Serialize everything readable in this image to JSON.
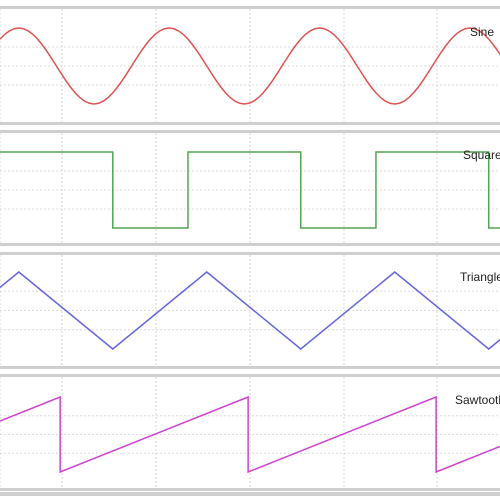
{
  "chart_data": [
    {
      "type": "line",
      "title": "Sine",
      "x": [
        0,
        0.125,
        0.25,
        0.375,
        0.5,
        0.625,
        0.75,
        0.875,
        1,
        1.125,
        1.25,
        1.375,
        1.5,
        1.625,
        1.75,
        1.875,
        2,
        2.125,
        2.25,
        2.375,
        2.5,
        2.625,
        2.75,
        2.875,
        3,
        3.125,
        3.25,
        3.375,
        3.5,
        3.625,
        3.75,
        3.875,
        4,
        4.125,
        4.25,
        4.375,
        4.5,
        4.625,
        4.75,
        4.875,
        5,
        5.125,
        5.25,
        5.375,
        5.5,
        5.625,
        5.75,
        5.875,
        6,
        6.125,
        6.25,
        6.375,
        6.5,
        6.625,
        6.75,
        6.875,
        7,
        7.125,
        7.25,
        7.375,
        7.5,
        7.625,
        7.75,
        7.875,
        8,
        8.125,
        8.25,
        8.375,
        8.5,
        8.625,
        8.75,
        8.875,
        9,
        9.125,
        9.25,
        9.375,
        9.5,
        9.625,
        9.75,
        9.875,
        10,
        10.125,
        10.25,
        10.375,
        10.5,
        10.625,
        10.75,
        10.875,
        11,
        11.125,
        11.25,
        11.375,
        11.5,
        11.625,
        11.75,
        11.875,
        12,
        12.125,
        12.25,
        12.375,
        12.5,
        12.625,
        12.75,
        12.875,
        13,
        13.125,
        13.25,
        13.375
      ],
      "series": [
        {
          "color": "#e05252",
          "values": [
            0.7071,
            0.8315,
            0.9239,
            0.9808,
            1.0,
            0.9808,
            0.9239,
            0.8315,
            0.7071,
            0.5556,
            0.3827,
            0.1951,
            0.0,
            -0.1951,
            -0.3827,
            -0.5556,
            -0.7071,
            -0.8315,
            -0.9239,
            -0.9808,
            -1.0,
            -0.9808,
            -0.9239,
            -0.8315,
            -0.7071,
            -0.5556,
            -0.3827,
            -0.1951,
            0.0,
            0.1951,
            0.3827,
            0.5556,
            0.7071,
            0.8315,
            0.9239,
            0.9808,
            1.0,
            0.9808,
            0.9239,
            0.8315,
            0.7071,
            0.5556,
            0.3827,
            0.1951,
            0.0,
            -0.1951,
            -0.3827,
            -0.5556,
            -0.7071,
            -0.8315,
            -0.9239,
            -0.9808,
            -1.0,
            -0.9808,
            -0.9239,
            -0.8315,
            -0.7071,
            -0.5556,
            -0.3827,
            -0.1951,
            0.0,
            0.1951,
            0.3827,
            0.5556,
            0.7071,
            0.8315,
            0.9239,
            0.9808,
            1.0,
            0.9808,
            0.9239,
            0.8315,
            0.7071,
            0.5556,
            0.3827,
            0.1951,
            0.0,
            -0.1951,
            -0.3827,
            -0.5556,
            -0.7071,
            -0.8315,
            -0.9239,
            -0.9808,
            -1.0,
            -0.9808,
            -0.9239,
            -0.8315,
            -0.7071,
            -0.5556,
            -0.3827,
            -0.1951,
            0.0,
            0.1951,
            0.3827,
            0.5556,
            0.7071,
            0.8315,
            0.9239,
            0.9808,
            1.0,
            0.9808,
            0.9239,
            0.8315,
            0.7071,
            0.5556,
            0.3827,
            0.1951
          ]
        }
      ],
      "xlim": [
        0,
        13.3
      ],
      "ylim": [
        -1,
        1
      ],
      "grid": true
    },
    {
      "type": "line",
      "title": "Square",
      "x": [
        0,
        3,
        3,
        5,
        5,
        8,
        8,
        10,
        10,
        13,
        13,
        13.3
      ],
      "series": [
        {
          "color": "#54a454",
          "values": [
            1,
            1,
            -1,
            -1,
            1,
            1,
            -1,
            -1,
            1,
            1,
            -1,
            -1
          ]
        }
      ],
      "xlim": [
        0,
        13.3
      ],
      "ylim": [
        -1,
        1
      ],
      "grid": true
    },
    {
      "type": "line",
      "title": "Triangle",
      "x": [
        0,
        0.5,
        3,
        5.5,
        8,
        10.5,
        13,
        13.3
      ],
      "series": [
        {
          "color": "#6666e0",
          "values": [
            0.6,
            1,
            -1,
            1,
            -1,
            1,
            -1,
            -0.76
          ]
        }
      ],
      "xlim": [
        0,
        13.3
      ],
      "ylim": [
        -1,
        1
      ],
      "grid": true
    },
    {
      "type": "line",
      "title": "Sawtooth",
      "x": [
        0,
        1.6,
        1.6,
        6.6,
        6.6,
        11.6,
        11.6,
        13.3
      ],
      "series": [
        {
          "color": "#cc44cc",
          "values": [
            0.36,
            1,
            -1,
            1,
            -1,
            1,
            -1,
            -0.32
          ]
        }
      ],
      "xlim": [
        0,
        13.3
      ],
      "ylim": [
        -1,
        1
      ],
      "grid": true
    }
  ]
}
